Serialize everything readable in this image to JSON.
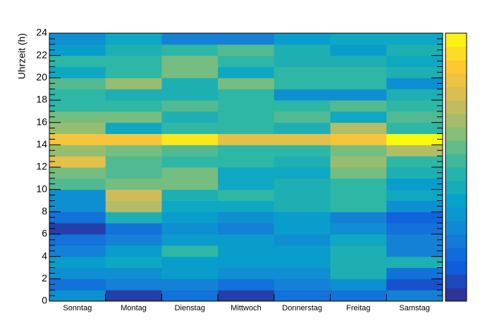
{
  "chart_data": {
    "type": "heatmap",
    "y_label": "Uhrzeit (h)",
    "categories": [
      "Sonntag",
      "Montag",
      "Dienstag",
      "Mittwoch",
      "Donnerstag",
      "Freitag",
      "Samstag"
    ],
    "ylim": [
      0,
      24
    ],
    "yticks": [
      0,
      2,
      4,
      6,
      8,
      10,
      12,
      14,
      16,
      18,
      20,
      22,
      24
    ],
    "zlim": [
      0,
      20
    ],
    "palette": [
      "#352a87",
      "#0f5cdd",
      "#1481d6",
      "#06a4ca",
      "#2eb7a4",
      "#87bf77",
      "#d1bb59",
      "#fec832",
      "#f9fb0e"
    ],
    "values": [
      [
        6,
        4,
        6,
        7,
        5,
        4,
        1,
        4,
        6,
        6,
        11,
        12,
        16,
        13,
        17,
        13,
        12,
        10,
        10,
        11,
        8,
        10,
        7,
        6
      ],
      [
        1,
        5,
        6,
        8,
        7,
        5,
        4,
        9,
        14,
        15,
        12,
        11,
        11,
        12,
        17,
        8,
        12,
        10,
        9,
        13,
        10,
        10,
        9,
        8
      ],
      [
        4,
        5,
        7,
        7,
        10,
        7,
        6,
        7,
        8,
        9,
        12,
        12,
        10,
        11,
        19,
        10,
        9,
        11,
        9,
        9,
        12,
        12,
        10,
        5
      ],
      [
        1,
        4,
        6,
        7,
        7,
        7,
        5,
        6,
        8,
        10,
        8,
        8,
        10,
        10,
        16,
        10,
        10,
        10,
        10,
        12,
        8,
        10,
        11,
        5
      ],
      [
        4,
        5,
        6,
        7,
        7,
        6,
        7,
        7,
        9,
        9,
        9,
        8,
        9,
        10,
        16,
        9,
        11,
        10,
        6,
        10,
        10,
        9,
        9,
        7
      ],
      [
        4,
        6,
        9,
        9,
        9,
        8,
        6,
        5,
        10,
        10,
        10,
        12,
        13,
        12,
        17,
        14,
        8,
        11,
        6,
        10,
        10,
        9,
        7,
        8
      ],
      [
        5,
        2,
        4,
        9,
        5,
        5,
        4,
        3,
        6,
        8,
        7,
        9,
        10,
        14,
        20,
        10,
        11,
        10,
        9,
        6,
        9,
        8,
        9,
        8
      ]
    ]
  }
}
